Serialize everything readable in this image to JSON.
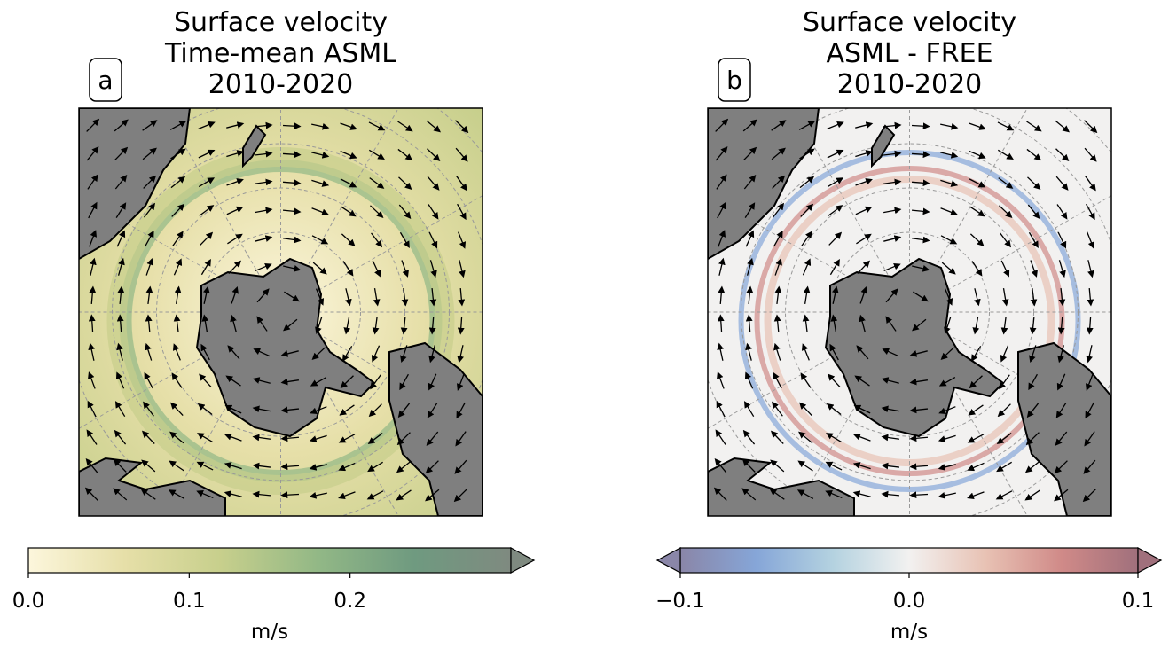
{
  "panels": [
    {
      "label": "a",
      "title": [
        "Surface velocity",
        "Time-mean ASML",
        "2010-2020"
      ],
      "colorbar": {
        "range": [
          0,
          0.3
        ],
        "extend": "max",
        "ticks": [
          {
            "value": 0,
            "label": "0.0"
          },
          {
            "value": 0.1,
            "label": "0.1"
          },
          {
            "value": 0.2,
            "label": "0.2"
          }
        ],
        "unit": "m/s",
        "colors": [
          "#fcf6dc",
          "#e6dfa8",
          "#c7cf8c",
          "#92b886",
          "#6f9a80",
          "#7f8a80"
        ]
      }
    },
    {
      "label": "b",
      "title": [
        "Surface velocity",
        "ASML - FREE",
        "2010-2020"
      ],
      "colorbar": {
        "range": [
          -0.1,
          0.1
        ],
        "extend": "both",
        "ticks": [
          {
            "value": -0.1,
            "label": "−0.1"
          },
          {
            "value": 0,
            "label": "0.0"
          },
          {
            "value": 0.1,
            "label": "0.1"
          }
        ],
        "unit": "m/s",
        "colors": [
          "#8a86a8",
          "#86a6d8",
          "#b4d2e0",
          "#f2f1f0",
          "#e8c2b4",
          "#d08a88",
          "#a0707c"
        ]
      }
    }
  ]
}
